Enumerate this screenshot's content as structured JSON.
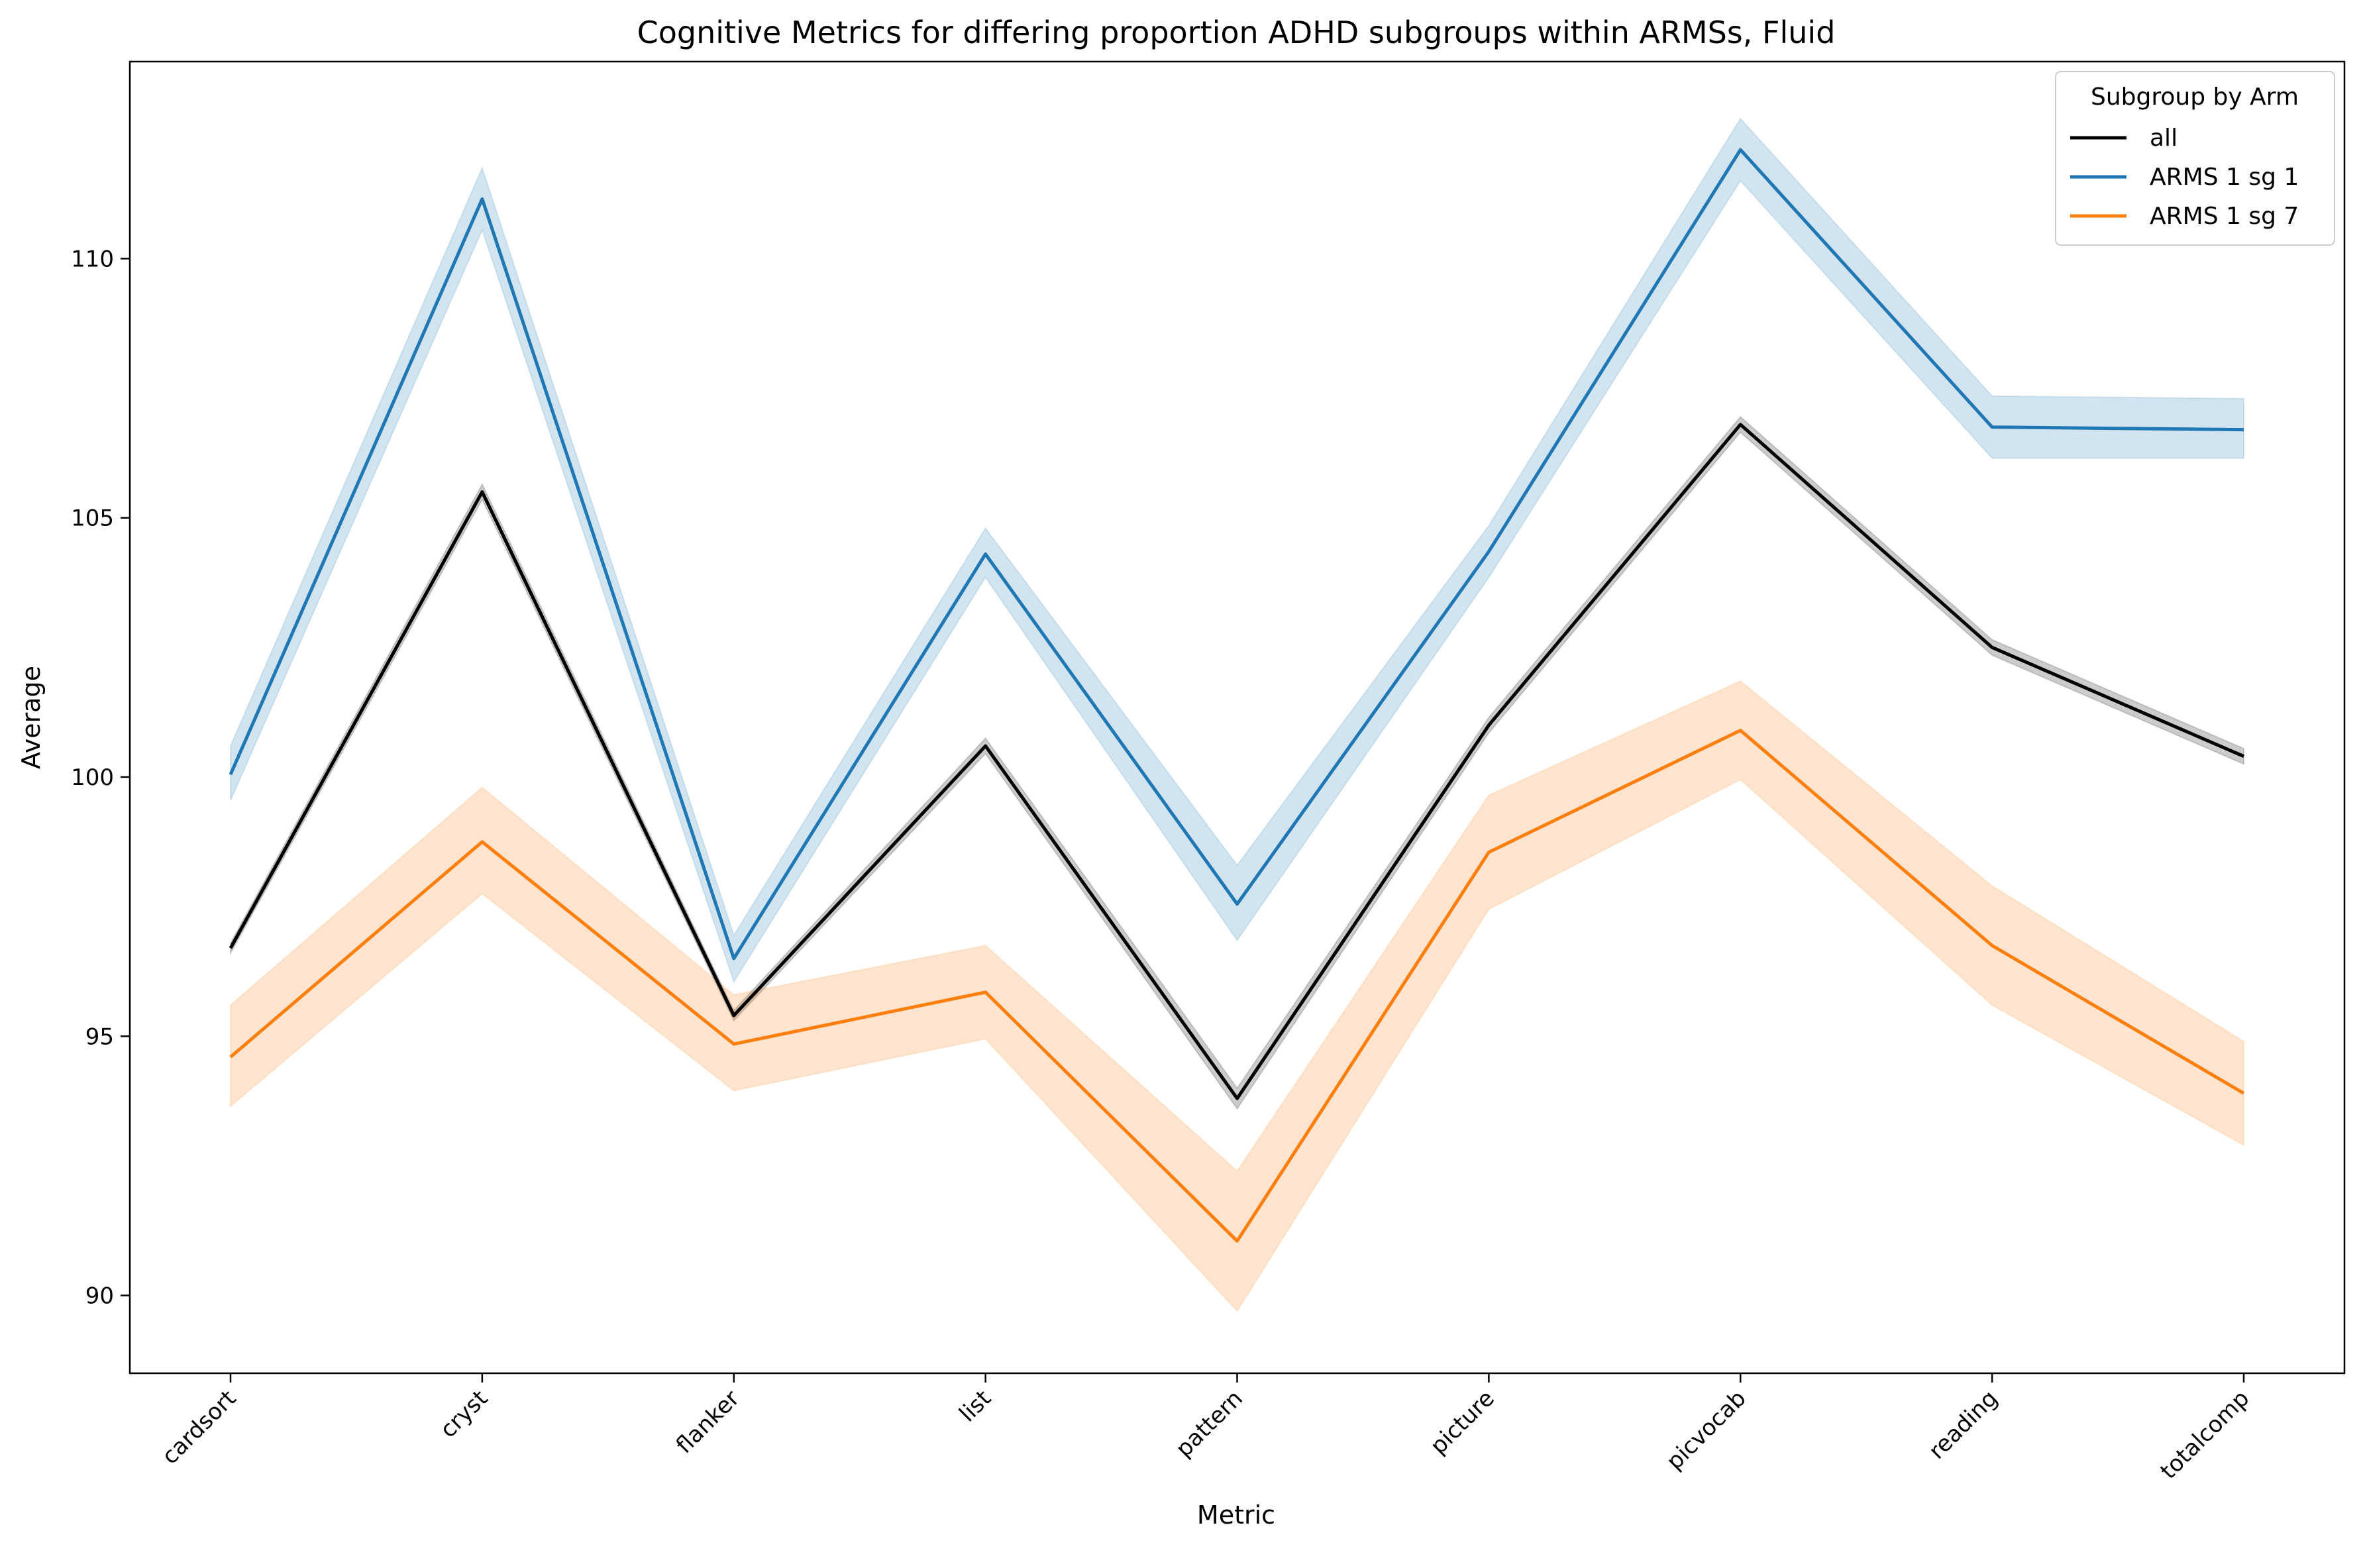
{
  "chart_data": {
    "type": "line",
    "title": "Cognitive Metrics for differing proportion ADHD subgroups within ARMSs, Fluid",
    "xlabel": "Metric",
    "ylabel": "Average",
    "categories": [
      "cardsort",
      "cryst",
      "flanker",
      "list",
      "pattern",
      "picture",
      "picvocab",
      "reading",
      "totalcomp"
    ],
    "y_ticks": [
      "90",
      "95",
      "100",
      "105",
      "110"
    ],
    "ylim": [
      88.5,
      113.8
    ],
    "grid": false,
    "legend": {
      "title": "Subgroup by Arm",
      "placement": "top-right"
    },
    "series": [
      {
        "name": "all",
        "color": "#000000",
        "values": [
          96.7,
          105.5,
          95.4,
          100.6,
          93.8,
          101.0,
          106.8,
          102.5,
          100.4
        ],
        "lower": [
          96.6,
          105.35,
          95.3,
          100.45,
          93.6,
          100.85,
          106.65,
          102.35,
          100.25
        ],
        "upper": [
          96.8,
          105.65,
          95.5,
          100.75,
          94.0,
          101.15,
          106.95,
          102.65,
          100.55
        ]
      },
      {
        "name": "ARMS 1 sg 1",
        "color": "#1f77b4",
        "values": [
          100.05,
          111.15,
          96.5,
          104.3,
          97.55,
          104.35,
          112.1,
          106.75,
          106.7
        ],
        "lower": [
          99.55,
          110.55,
          96.05,
          103.85,
          96.85,
          103.85,
          111.5,
          106.15,
          106.15
        ],
        "upper": [
          100.6,
          111.75,
          96.95,
          104.8,
          98.3,
          104.85,
          112.7,
          107.35,
          107.3
        ]
      },
      {
        "name": "ARMS 1 sg 7",
        "color": "#ff7f0e",
        "values": [
          94.6,
          98.75,
          94.85,
          95.85,
          91.05,
          98.55,
          100.9,
          96.75,
          93.9
        ],
        "lower": [
          93.65,
          97.75,
          93.95,
          94.95,
          89.7,
          97.45,
          99.95,
          95.6,
          92.9
        ],
        "upper": [
          95.6,
          99.8,
          95.8,
          96.75,
          92.4,
          99.65,
          101.85,
          97.9,
          94.9
        ]
      }
    ]
  }
}
